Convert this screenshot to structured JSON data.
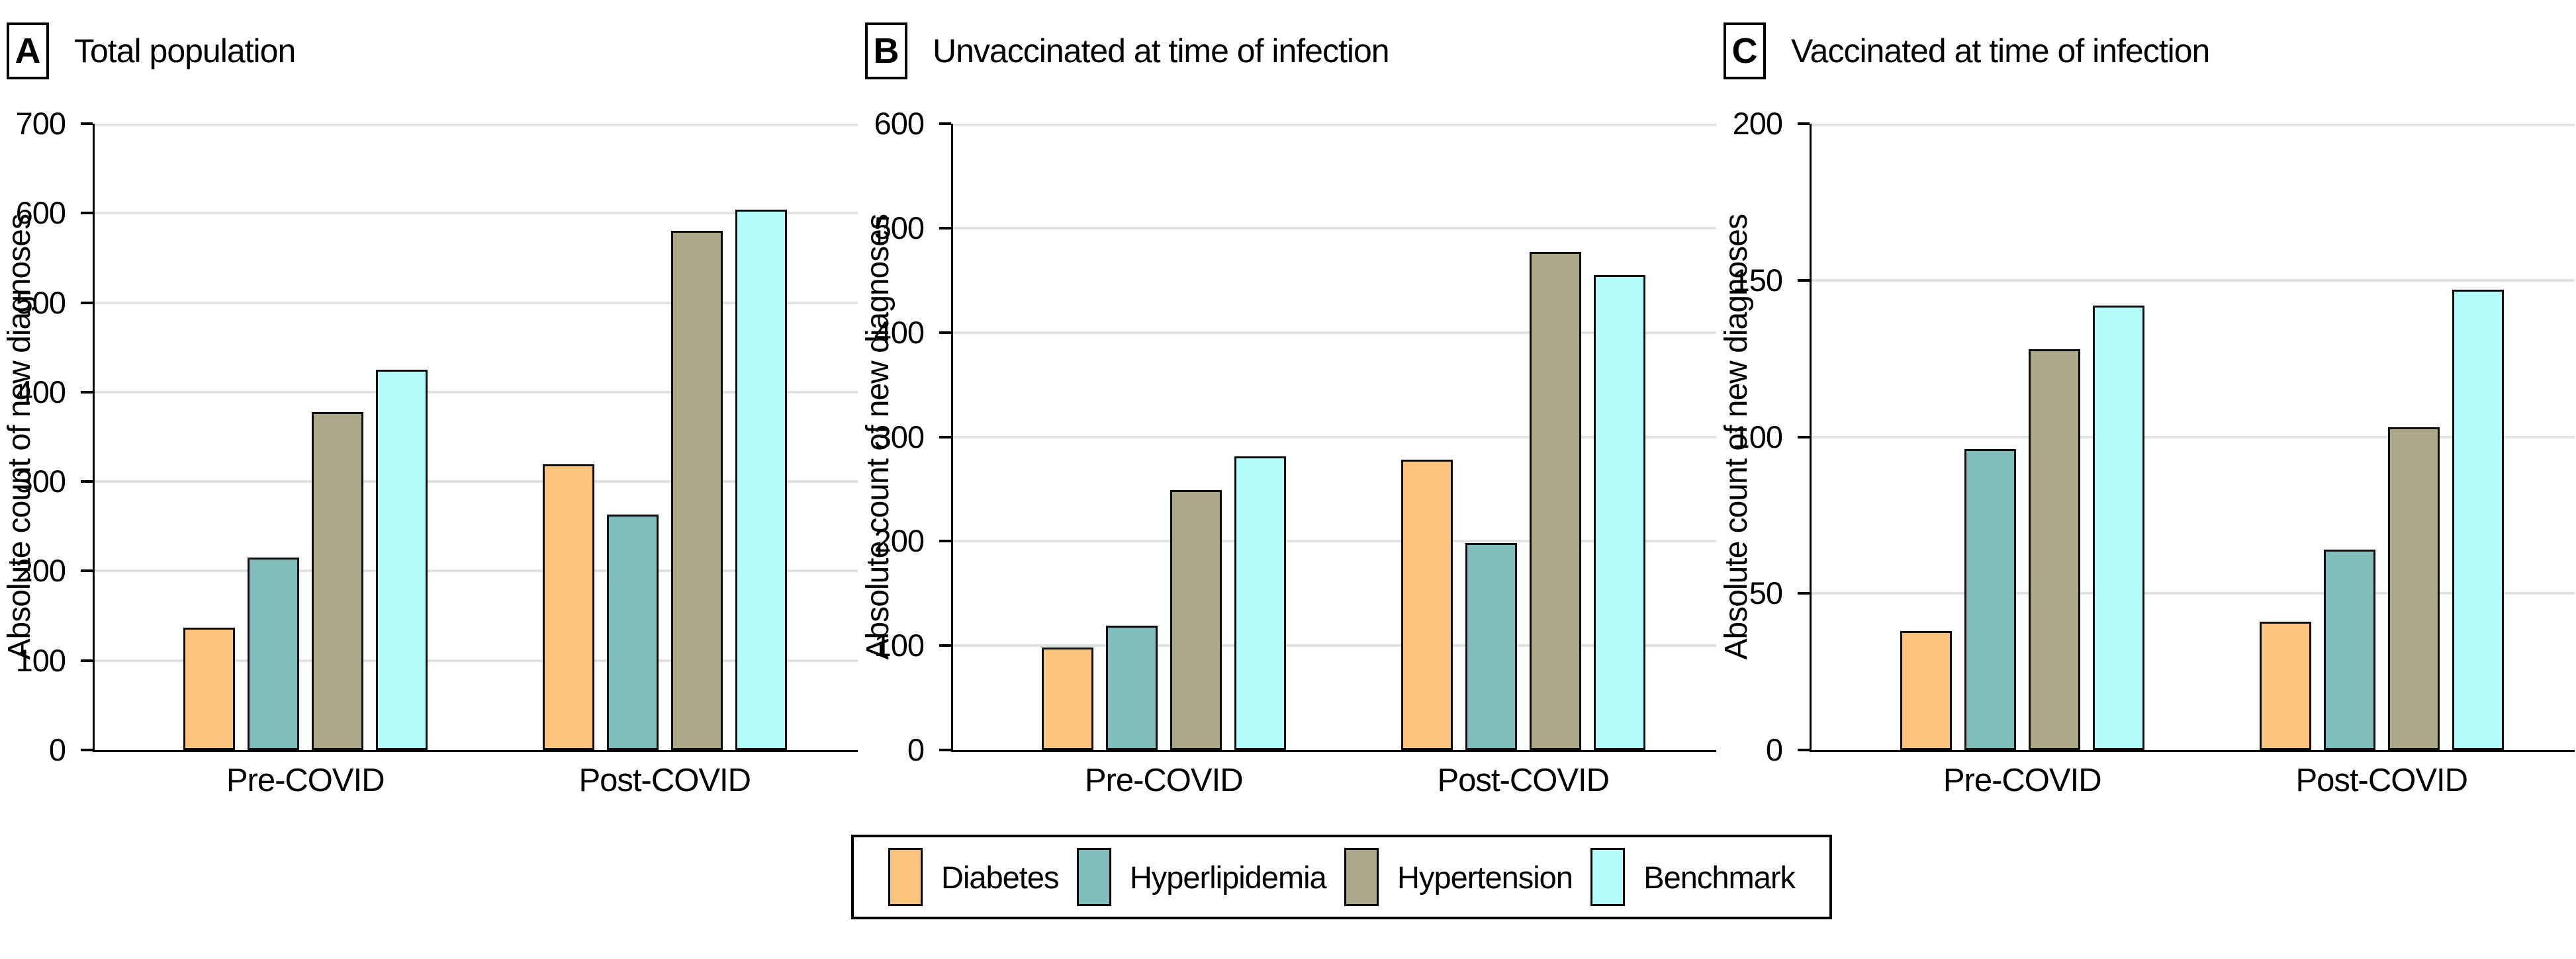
{
  "figure": {
    "legend": {
      "items": [
        {
          "label": "Diabetes",
          "color": "#FCC37C"
        },
        {
          "label": "Hyperlipidemia",
          "color": "#7FBEBA"
        },
        {
          "label": "Hypertension",
          "color": "#ACA98B"
        },
        {
          "label": "Benchmark",
          "color": "#B5FCFD"
        }
      ]
    },
    "colors": {
      "bar_border": "#0d0d0d",
      "gridline": "#e2e2e2",
      "axis": "#000000",
      "background": "#ffffff"
    }
  },
  "chart_data": [
    {
      "type": "bar",
      "panel_letter": "A",
      "title": "Total population",
      "ylabel": "Absolute count of new diagnoses",
      "xlabel": "",
      "categories": [
        "Pre-COVID",
        "Post-COVID"
      ],
      "series": [
        {
          "name": "Diabetes",
          "values": [
            137,
            319
          ]
        },
        {
          "name": "Hyperlipidemia",
          "values": [
            215,
            263
          ]
        },
        {
          "name": "Hypertension",
          "values": [
            378,
            580
          ]
        },
        {
          "name": "Benchmark",
          "values": [
            425,
            604
          ]
        }
      ],
      "ylim": [
        0,
        700
      ],
      "yticks": [
        0,
        100,
        200,
        300,
        400,
        500,
        600,
        700
      ],
      "grid": "horizontal",
      "legend_position": "bottom"
    },
    {
      "type": "bar",
      "panel_letter": "B",
      "title": "Unvaccinated at time of infection",
      "ylabel": "Absolute count of new diagnoses",
      "xlabel": "",
      "categories": [
        "Pre-COVID",
        "Post-COVID"
      ],
      "series": [
        {
          "name": "Diabetes",
          "values": [
            98,
            278
          ]
        },
        {
          "name": "Hyperlipidemia",
          "values": [
            119,
            198
          ]
        },
        {
          "name": "Hypertension",
          "values": [
            249,
            477
          ]
        },
        {
          "name": "Benchmark",
          "values": [
            281,
            455
          ]
        }
      ],
      "ylim": [
        0,
        600
      ],
      "yticks": [
        0,
        100,
        200,
        300,
        400,
        500,
        600
      ],
      "grid": "horizontal",
      "legend_position": "bottom"
    },
    {
      "type": "bar",
      "panel_letter": "C",
      "title": "Vaccinated at time of infection",
      "ylabel": "Absolute count of new diagnoses",
      "xlabel": "",
      "categories": [
        "Pre-COVID",
        "Post-COVID"
      ],
      "series": [
        {
          "name": "Diabetes",
          "values": [
            38,
            41
          ]
        },
        {
          "name": "Hyperlipidemia",
          "values": [
            96,
            64
          ]
        },
        {
          "name": "Hypertension",
          "values": [
            128,
            103
          ]
        },
        {
          "name": "Benchmark",
          "values": [
            142,
            147
          ]
        }
      ],
      "ylim": [
        0,
        200
      ],
      "yticks": [
        0,
        50,
        100,
        150,
        200
      ],
      "grid": "horizontal",
      "legend_position": "bottom"
    }
  ]
}
